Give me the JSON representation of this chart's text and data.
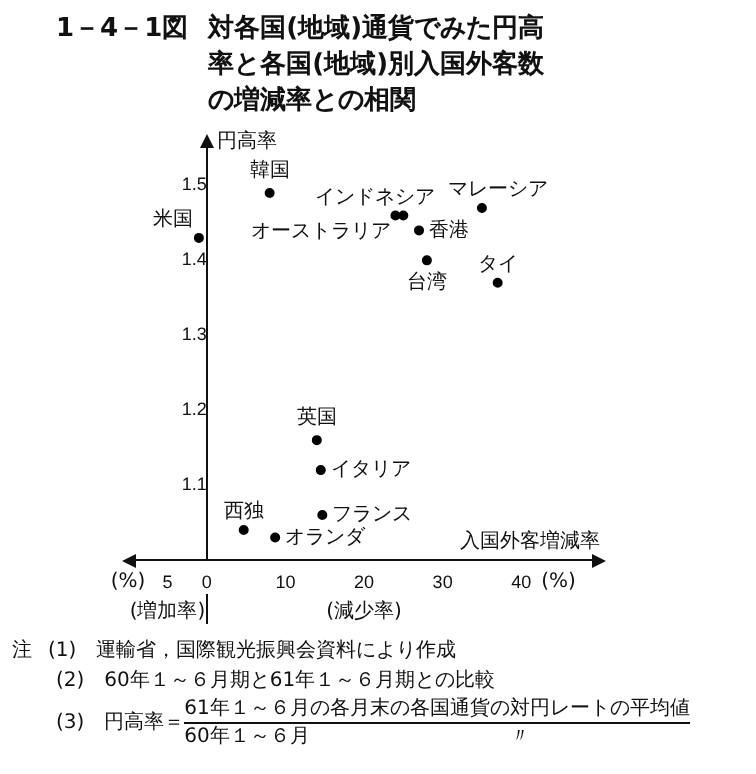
{
  "chart_data": {
    "type": "scatter",
    "title": "1－4－1図　対各国(地域)通貨でみた円高率と各国(地域)別入国外客数の増減率との相関",
    "xlabel": "入国外客増減率",
    "ylabel": "円高率",
    "xlim": [
      -9,
      49
    ],
    "xticks": [
      {
        "value": -5,
        "label": "5"
      },
      0,
      10,
      20,
      30,
      40
    ],
    "ylim": [
      1.0,
      1.55
    ],
    "yticks": [
      1.1,
      1.2,
      1.3,
      1.4,
      1.5
    ],
    "grid": false,
    "legend": false,
    "marker": "circle",
    "series": [
      {
        "name": "韓国",
        "color": "#000000",
        "x": [
          8
        ],
        "values": [
          1.49
        ]
      },
      {
        "name": "米国",
        "color": "#000000",
        "x": [
          -1
        ],
        "values": [
          1.43
        ]
      },
      {
        "name": "インドネシア",
        "color": "#000000",
        "x": [
          25
        ],
        "values": [
          1.46
        ]
      },
      {
        "name": "オーストラリア",
        "color": "#000000",
        "x": [
          24
        ],
        "values": [
          1.46
        ]
      },
      {
        "name": "マレーシア",
        "color": "#000000",
        "x": [
          35
        ],
        "values": [
          1.47
        ]
      },
      {
        "name": "香港",
        "color": "#000000",
        "x": [
          27
        ],
        "values": [
          1.44
        ]
      },
      {
        "name": "台湾",
        "color": "#000000",
        "x": [
          28
        ],
        "values": [
          1.4
        ]
      },
      {
        "name": "タイ",
        "color": "#000000",
        "x": [
          37
        ],
        "values": [
          1.37
        ]
      },
      {
        "name": "英国",
        "color": "#000000",
        "x": [
          14
        ],
        "values": [
          1.16
        ]
      },
      {
        "name": "イタリア",
        "color": "#000000",
        "x": [
          14.5
        ],
        "values": [
          1.12
        ]
      },
      {
        "name": "フランス",
        "color": "#000000",
        "x": [
          14.7
        ],
        "values": [
          1.06
        ]
      },
      {
        "name": "西独",
        "color": "#000000",
        "x": [
          4.7
        ],
        "values": [
          1.04
        ]
      },
      {
        "name": "オランダ",
        "color": "#000000",
        "x": [
          8.7
        ],
        "values": [
          1.03
        ]
      }
    ],
    "annotations": [
      "(%)",
      "(%)",
      "(増加率)",
      "(減少率)",
      "注",
      "(1)　運輸省，国際観光振興会資料により作成",
      "(2)　60年１～６月期と61年１～６月期との比較",
      "(3)　円高率＝",
      "61年１～６月の各月末の各国通貨の対円レートの平均値",
      "60年１～６月　　　　　　　　　　〃"
    ]
  }
}
